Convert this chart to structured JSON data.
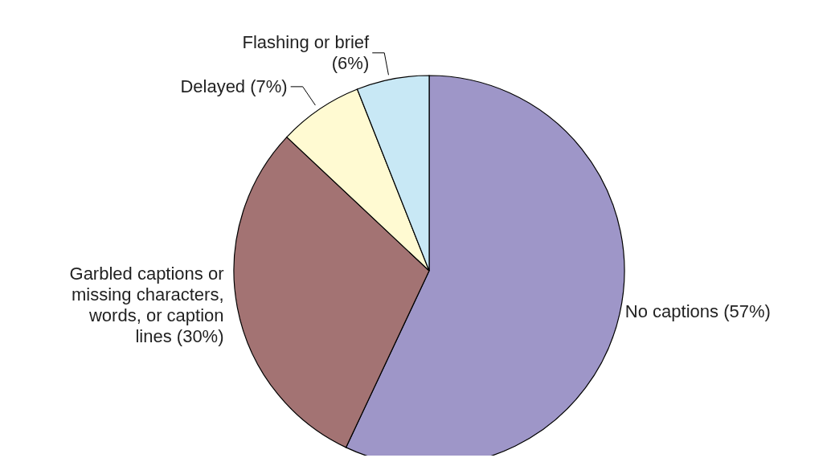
{
  "chart_data": {
    "type": "pie",
    "categories": [
      "No captions (57%)",
      "Garbled captions or missing characters, words, or caption lines (30%)",
      "Delayed (7%)",
      "Flashing or brief (6%)"
    ],
    "values": [
      57,
      30,
      7,
      6
    ],
    "colors": [
      "#9e96c8",
      "#a37373",
      "#fffad2",
      "#c8e8f5"
    ]
  }
}
